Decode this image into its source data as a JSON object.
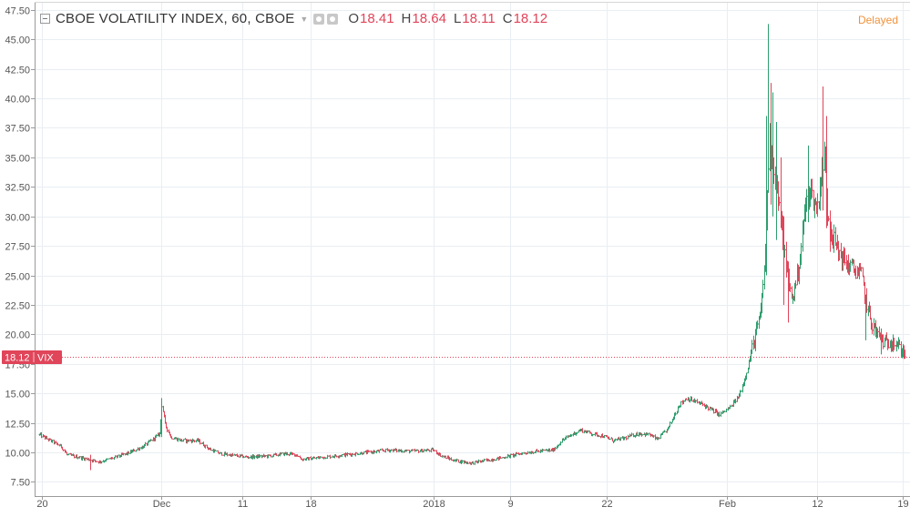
{
  "legend": {
    "title": "CBOE VOLATILITY INDEX, 60, CBOE",
    "o_label": "O",
    "o_value": "18.41",
    "h_label": "H",
    "h_value": "18.64",
    "l_label": "L",
    "l_value": "18.11",
    "c_label": "C",
    "c_value": "18.12",
    "value_color": "#e0455a"
  },
  "status": {
    "delayed": "Delayed",
    "color": "#f0923a"
  },
  "icons": [
    "collapse-icon",
    "chevron-down-icon",
    "eye-icon",
    "settings-icon"
  ],
  "chart_data": {
    "type": "ohlc",
    "symbol": "VIX",
    "last_price_label": "18.12",
    "last_price": 18.12,
    "up_color": "#2e9e6e",
    "down_color": "#e0455a",
    "price_line_color": "#e0455a",
    "grid": true,
    "y_axis_side": "left",
    "ylim": [
      6.3,
      48.1
    ],
    "yticks": [
      "7.50",
      "10.00",
      "12.50",
      "15.00",
      "17.50",
      "20.00",
      "22.50",
      "25.00",
      "27.50",
      "30.00",
      "32.50",
      "35.00",
      "37.50",
      "40.00",
      "42.50",
      "45.00",
      "47.50"
    ],
    "xticks": [
      {
        "label": "20",
        "bar": 2.5
      },
      {
        "label": "Dec",
        "bar": 111.5
      },
      {
        "label": "11",
        "bar": 185.5
      },
      {
        "label": "18",
        "bar": 248
      },
      {
        "label": "2018",
        "bar": 361
      },
      {
        "label": "9",
        "bar": 431
      },
      {
        "label": "22",
        "bar": 519
      },
      {
        "label": "Feb",
        "bar": 629
      },
      {
        "label": "12",
        "bar": 712
      },
      {
        "label": "19",
        "bar": 790
      }
    ],
    "bar_count": 816,
    "keypoints": [
      [
        0,
        11.5
      ],
      [
        20,
        10.5
      ],
      [
        25,
        9.8
      ],
      [
        45,
        9.4
      ],
      [
        55,
        9.2
      ],
      [
        70,
        9.6
      ],
      [
        80,
        9.9
      ],
      [
        95,
        10.5
      ],
      [
        105,
        11.2
      ],
      [
        110,
        11.6
      ],
      [
        112,
        14.0
      ],
      [
        115,
        12.4
      ],
      [
        120,
        11.3
      ],
      [
        130,
        11.0
      ],
      [
        145,
        11.0
      ],
      [
        155,
        10.3
      ],
      [
        165,
        9.9
      ],
      [
        190,
        9.6
      ],
      [
        210,
        9.7
      ],
      [
        225,
        9.9
      ],
      [
        235,
        9.8
      ],
      [
        240,
        9.4
      ],
      [
        260,
        9.6
      ],
      [
        280,
        9.8
      ],
      [
        300,
        10.0
      ],
      [
        320,
        10.2
      ],
      [
        340,
        10.1
      ],
      [
        360,
        10.2
      ],
      [
        368,
        9.7
      ],
      [
        380,
        9.3
      ],
      [
        395,
        9.1
      ],
      [
        420,
        9.5
      ],
      [
        440,
        9.9
      ],
      [
        455,
        10.1
      ],
      [
        470,
        10.2
      ],
      [
        478,
        11.0
      ],
      [
        485,
        11.4
      ],
      [
        495,
        11.9
      ],
      [
        505,
        11.6
      ],
      [
        515,
        11.4
      ],
      [
        525,
        11.0
      ],
      [
        535,
        11.2
      ],
      [
        548,
        11.6
      ],
      [
        558,
        11.5
      ],
      [
        565,
        11.1
      ],
      [
        575,
        12.0
      ],
      [
        585,
        14.0
      ],
      [
        592,
        14.6
      ],
      [
        600,
        14.3
      ],
      [
        608,
        14.0
      ],
      [
        615,
        13.6
      ],
      [
        622,
        13.2
      ],
      [
        632,
        13.8
      ],
      [
        640,
        14.8
      ],
      [
        646,
        16.5
      ],
      [
        652,
        18.8
      ],
      [
        660,
        21.8
      ],
      [
        664,
        27.0
      ],
      [
        668,
        37.0
      ],
      [
        672,
        34.0
      ],
      [
        676,
        31.5
      ],
      [
        680,
        28.0
      ],
      [
        683,
        26.0
      ],
      [
        686,
        24.0
      ],
      [
        689,
        23.0
      ],
      [
        692,
        24.5
      ],
      [
        696,
        26.5
      ],
      [
        700,
        30.5
      ],
      [
        705,
        32.5
      ],
      [
        709,
        31.0
      ],
      [
        712,
        30.8
      ],
      [
        715,
        33.5
      ],
      [
        718,
        35.0
      ],
      [
        721,
        30.5
      ],
      [
        725,
        28.5
      ],
      [
        730,
        27.2
      ],
      [
        738,
        26.0
      ],
      [
        744,
        25.6
      ],
      [
        752,
        25.0
      ],
      [
        758,
        22.0
      ],
      [
        762,
        20.8
      ],
      [
        768,
        19.8
      ],
      [
        774,
        19.2
      ],
      [
        780,
        19.5
      ],
      [
        785,
        19.0
      ],
      [
        790,
        18.6
      ],
      [
        792,
        18.41
      ]
    ],
    "spikes": [
      {
        "bar": 112,
        "high": 14.6,
        "low": 11.3
      },
      {
        "bar": 47,
        "high": 9.8,
        "low": 8.5
      },
      {
        "bar": 665,
        "high": 38.5,
        "low": 25.0
      },
      {
        "bar": 667,
        "high": 46.3,
        "low": 33.0
      },
      {
        "bar": 669,
        "high": 41.3,
        "low": 31.0
      },
      {
        "bar": 671,
        "high": 40.5,
        "low": 30.0
      },
      {
        "bar": 674,
        "high": 38.0,
        "low": 28.0
      },
      {
        "bar": 678,
        "high": 35.0,
        "low": 29.0
      },
      {
        "bar": 681,
        "high": 30.0,
        "low": 22.5
      },
      {
        "bar": 685,
        "high": 26.0,
        "low": 21.0
      },
      {
        "bar": 703,
        "high": 36.0,
        "low": 29.5
      },
      {
        "bar": 717,
        "high": 41.0,
        "low": 30.5
      },
      {
        "bar": 720,
        "high": 38.5,
        "low": 29.0
      },
      {
        "bar": 723,
        "high": 30.5,
        "low": 27.0
      },
      {
        "bar": 756,
        "high": 22.2,
        "low": 19.5
      },
      {
        "bar": 770,
        "high": 20.5,
        "low": 18.3
      },
      {
        "bar": 781,
        "high": 20.0,
        "low": 18.5
      },
      {
        "bar": 792,
        "high": 18.64,
        "low": 18.11
      }
    ]
  }
}
